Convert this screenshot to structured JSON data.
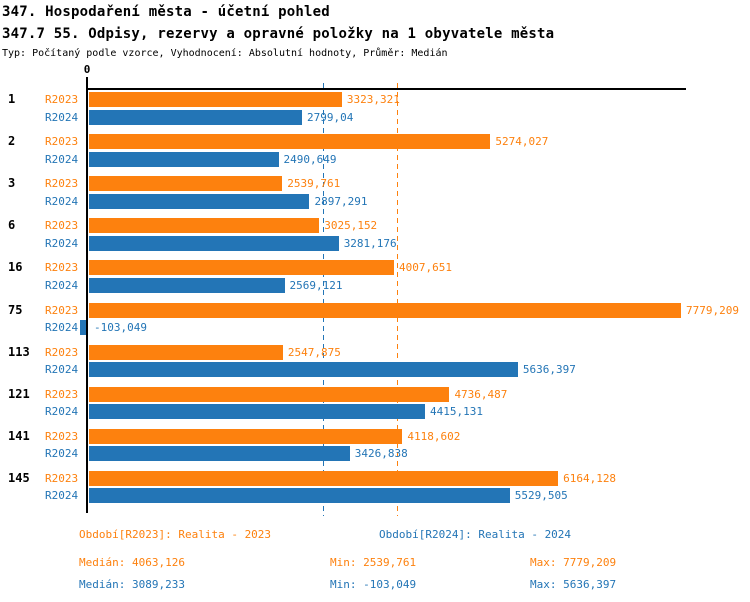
{
  "header": {
    "title": "347. Hospodaření města - účetní pohled",
    "subtitle": "347.7 55. Odpisy, rezervy a opravné položky na 1 obyvatele města",
    "meta": "Typ: Počítaný podle vzorce, Vyhodnocení: Absolutní hodnoty, Průměr: Medián"
  },
  "chart_data": {
    "type": "bar",
    "orientation": "horizontal",
    "zero_tick_label": "0",
    "grid": "off",
    "xlim": [
      -200,
      7900
    ],
    "categories": [
      "1",
      "2",
      "3",
      "6",
      "16",
      "75",
      "113",
      "121",
      "141",
      "145"
    ],
    "series": [
      {
        "name": "R2023",
        "color": "#fd810e",
        "values": [
          3323.321,
          5274.027,
          2539.761,
          3025.152,
          4007.651,
          7779.209,
          2547.875,
          4736.487,
          4118.602,
          6164.128
        ],
        "value_labels": [
          "3323,321",
          "5274,027",
          "2539,761",
          "3025,152",
          "4007,651",
          "7779,209",
          "2547,875",
          "4736,487",
          "4118,602",
          "6164,128"
        ],
        "legend": "Období[R2023]: Realita - 2023",
        "median_value": 4063.126,
        "median_label": "Medián: 4063,126",
        "min_label": "Min: 2539,761",
        "max_label": "Max: 7779,209"
      },
      {
        "name": "R2024",
        "color": "#2375b6",
        "values": [
          2799.04,
          2490.649,
          2897.291,
          3281.176,
          2569.121,
          -103.049,
          5636.397,
          4415.131,
          3426.838,
          5529.505
        ],
        "value_labels": [
          "2799,04",
          "2490,649",
          "2897,291",
          "3281,176",
          "2569,121",
          "-103,049",
          "5636,397",
          "4415,131",
          "3426,838",
          "5529,505"
        ],
        "legend": "Období[R2024]: Realita - 2024",
        "median_value": 3089.233,
        "median_label": "Medián: 3089,233",
        "min_label": "Min: -103,049",
        "max_label": "Max: 5636,397"
      }
    ]
  }
}
